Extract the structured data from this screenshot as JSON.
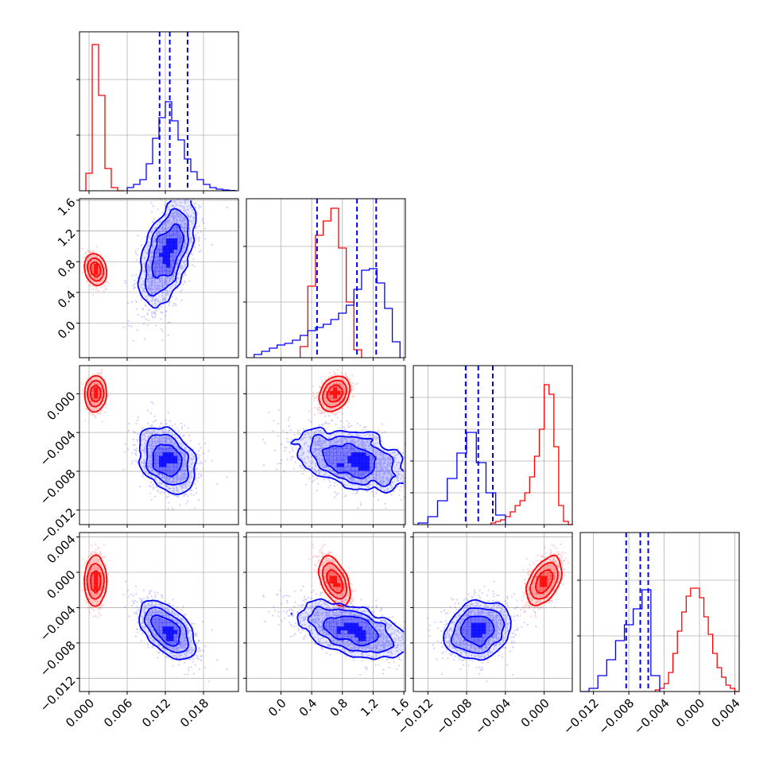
{
  "chart_data": {
    "type": "corner",
    "colors": {
      "series_a": "#ff0000",
      "series_b": "#0000ff"
    },
    "grid": true,
    "parameters": [
      {
        "range": [
          -0.0015,
          0.0235
        ],
        "ticks": [
          "0.000",
          "0.006",
          "0.012",
          "0.018"
        ],
        "tick_values": [
          0.0,
          0.006,
          0.012,
          0.018
        ]
      },
      {
        "range": [
          -0.45,
          1.62
        ],
        "ticks": [
          "0.0",
          "0.4",
          "0.8",
          "1.2",
          "1.6"
        ],
        "tick_values": [
          0.0,
          0.4,
          0.8,
          1.2,
          1.6
        ]
      },
      {
        "range": [
          -0.0135,
          0.0029
        ],
        "ticks": [
          "−0.012",
          "−0.008",
          "−0.004",
          "0.000"
        ],
        "tick_values": [
          -0.012,
          -0.008,
          -0.004,
          0.0
        ]
      },
      {
        "range": [
          -0.0135,
          0.0045
        ],
        "ticks": [
          "−0.012",
          "−0.008",
          "−0.004",
          "0.000",
          "0.004"
        ],
        "tick_values": [
          -0.012,
          -0.008,
          -0.004,
          0.0,
          0.004
        ]
      }
    ],
    "diag_yticks": [
      [
        0.35,
        0.7
      ],
      [
        0.35,
        0.7
      ],
      [
        0.2,
        0.4,
        0.6,
        0.8
      ],
      [
        0.35,
        0.7
      ]
    ],
    "marginals": [
      {
        "series_a": {
          "edges": [
            -0.0005,
            0.0005,
            0.0015,
            0.0025,
            0.0035,
            0.0045,
            0.0055
          ],
          "heights": [
            0.11,
            0.92,
            0.6,
            0.14,
            0.02,
            0.0
          ]
        },
        "series_b": {
          "edges": [
            0.006,
            0.007,
            0.008,
            0.009,
            0.01,
            0.011,
            0.012,
            0.013,
            0.014,
            0.015,
            0.016,
            0.017,
            0.018,
            0.019,
            0.02,
            0.021,
            0.022,
            0.023
          ],
          "heights": [
            0.02,
            0.04,
            0.07,
            0.17,
            0.33,
            0.46,
            0.56,
            0.44,
            0.32,
            0.2,
            0.12,
            0.07,
            0.04,
            0.02,
            0.01,
            0.005,
            0.002
          ]
        },
        "quantiles_b": [
          0.0111,
          0.0127,
          0.0155
        ]
      },
      {
        "series_a": {
          "edges": [
            0.25,
            0.35,
            0.45,
            0.55,
            0.65,
            0.75,
            0.85,
            0.95,
            1.05
          ],
          "heights": [
            0.07,
            0.45,
            0.77,
            0.86,
            0.94,
            0.69,
            0.35,
            0.05
          ]
        },
        "series_b": {
          "edges": [
            -0.35,
            -0.25,
            -0.15,
            -0.05,
            0.05,
            0.15,
            0.25,
            0.35,
            0.45,
            0.55,
            0.65,
            0.75,
            0.85,
            0.95,
            1.05,
            1.15,
            1.25,
            1.35,
            1.45,
            1.55
          ],
          "heights": [
            0.02,
            0.04,
            0.06,
            0.08,
            0.09,
            0.11,
            0.14,
            0.17,
            0.19,
            0.21,
            0.24,
            0.28,
            0.33,
            0.43,
            0.55,
            0.56,
            0.47,
            0.31,
            0.1
          ]
        },
        "quantiles_b": [
          0.47,
          0.99,
          1.24
        ]
      },
      {
        "series_a": {
          "edges": [
            -0.0055,
            -0.005,
            -0.0045,
            -0.004,
            -0.0035,
            -0.003,
            -0.0025,
            -0.002,
            -0.0015,
            -0.001,
            -0.0005,
            0.0,
            0.0005,
            0.001,
            0.0015,
            0.002,
            0.0025,
            0.003
          ],
          "heights": [
            0.01,
            0.02,
            0.03,
            0.05,
            0.08,
            0.12,
            0.15,
            0.2,
            0.3,
            0.43,
            0.6,
            0.88,
            0.82,
            0.49,
            0.12,
            0.02,
            0.0
          ]
        },
        "series_b": {
          "edges": [
            -0.013,
            -0.012,
            -0.011,
            -0.01,
            -0.009,
            -0.008,
            -0.007,
            -0.006,
            -0.005,
            -0.004
          ],
          "heights": [
            0.01,
            0.05,
            0.15,
            0.29,
            0.45,
            0.58,
            0.39,
            0.2,
            0.06
          ]
        },
        "quantiles_b": [
          -0.0081,
          -0.0068,
          -0.0053
        ]
      },
      {
        "series_a": {
          "edges": [
            -0.005,
            -0.0045,
            -0.004,
            -0.0035,
            -0.003,
            -0.0025,
            -0.002,
            -0.0015,
            -0.001,
            -0.0005,
            0.0,
            0.0005,
            0.001,
            0.0015,
            0.002,
            0.0025,
            0.003,
            0.0035,
            0.004,
            0.0045
          ],
          "heights": [
            0.01,
            0.02,
            0.05,
            0.12,
            0.24,
            0.38,
            0.5,
            0.6,
            0.65,
            0.65,
            0.59,
            0.47,
            0.36,
            0.24,
            0.15,
            0.09,
            0.04,
            0.02,
            0.0
          ]
        },
        "series_b": {
          "edges": [
            -0.0135,
            -0.0125,
            -0.0115,
            -0.0105,
            -0.0095,
            -0.0085,
            -0.0075,
            -0.0065,
            -0.0055,
            -0.0045
          ],
          "heights": [
            0.0,
            0.02,
            0.1,
            0.2,
            0.32,
            0.42,
            0.52,
            0.64,
            0.1
          ]
        },
        "quantiles_b": [
          -0.0083,
          -0.0067,
          -0.0058
        ]
      }
    ],
    "joint_distributions": {
      "series_a": {
        "mean": [
          0.001,
          0.7,
          0.0,
          -0.001
        ],
        "sd": [
          0.0006,
          0.09,
          0.0008,
          0.0011
        ],
        "corr": [
          [
            1,
            -0.3,
            0.1,
            0.05
          ],
          [
            -0.3,
            1,
            0.3,
            -0.75
          ],
          [
            0.1,
            0.3,
            1,
            0.6
          ],
          [
            0.05,
            -0.75,
            0.6,
            1
          ]
        ]
      },
      "series_b": {
        "mean": [
          0.0123,
          0.9,
          -0.0068,
          -0.0065
        ],
        "sd": [
          0.0022,
          0.38,
          0.0017,
          0.0016
        ],
        "corr": [
          [
            1,
            0.55,
            -0.3,
            -0.6
          ],
          [
            0.55,
            1,
            -0.4,
            -0.55
          ],
          [
            -0.3,
            -0.4,
            1,
            0.15
          ],
          [
            -0.6,
            -0.55,
            0.15,
            1
          ]
        ]
      }
    }
  }
}
